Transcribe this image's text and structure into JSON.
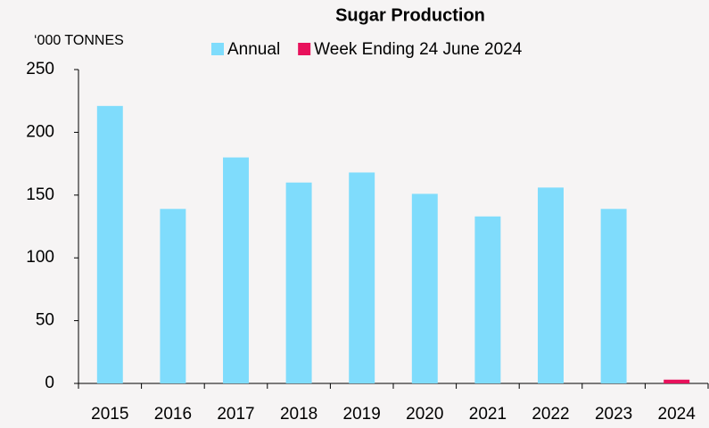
{
  "chart_data": {
    "type": "bar",
    "title": "Sugar Production",
    "y_label": "‘000 TONNES",
    "categories": [
      "2015",
      "2016",
      "2017",
      "2018",
      "2019",
      "2020",
      "2021",
      "2022",
      "2023",
      "2024"
    ],
    "series": [
      {
        "name": "Annual",
        "color": "#7fdcfc",
        "values": [
          221,
          139,
          180,
          160,
          168,
          151,
          133,
          156,
          139,
          null
        ]
      },
      {
        "name": "Week Ending 24 June 2024",
        "color": "#e8115b",
        "values": [
          null,
          null,
          null,
          null,
          null,
          null,
          null,
          null,
          null,
          3
        ]
      }
    ],
    "ylim": [
      0,
      250
    ],
    "yticks": [
      0,
      50,
      100,
      150,
      200,
      250
    ],
    "grid": false
  }
}
